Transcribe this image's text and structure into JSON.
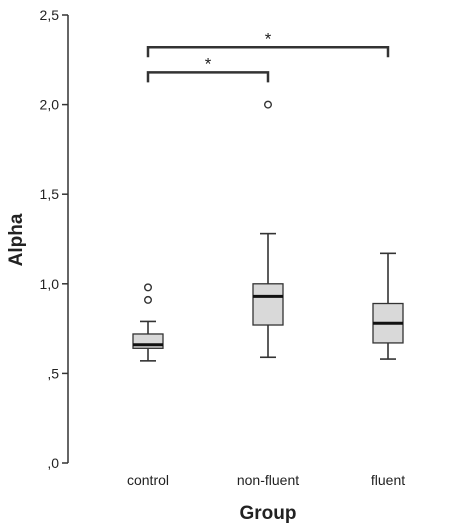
{
  "chart_data": {
    "type": "box",
    "xlabel": "Group",
    "ylabel": "Alpha",
    "ylim": [
      0,
      2.5
    ],
    "y_ticks": [
      {
        "value": 0,
        "label": ",0"
      },
      {
        "value": 0.5,
        "label": ",5"
      },
      {
        "value": 1.0,
        "label": "1,0"
      },
      {
        "value": 1.5,
        "label": "1,5"
      },
      {
        "value": 2.0,
        "label": "2,0"
      },
      {
        "value": 2.5,
        "label": "2,5"
      }
    ],
    "categories": [
      "control",
      "non-fluent",
      "fluent"
    ],
    "boxes": [
      {
        "category": "control",
        "whisker_low": 0.57,
        "q1": 0.64,
        "median": 0.66,
        "q3": 0.72,
        "whisker_high": 0.79,
        "outliers": [
          0.91,
          0.98
        ]
      },
      {
        "category": "non-fluent",
        "whisker_low": 0.59,
        "q1": 0.77,
        "median": 0.93,
        "q3": 1.0,
        "whisker_high": 1.28,
        "outliers": [
          2.0
        ]
      },
      {
        "category": "fluent",
        "whisker_low": 0.58,
        "q1": 0.67,
        "median": 0.78,
        "q3": 0.89,
        "whisker_high": 1.17,
        "outliers": []
      }
    ],
    "significance": [
      {
        "from": "control",
        "to": "fluent",
        "y": 2.32,
        "label": "*"
      },
      {
        "from": "control",
        "to": "non-fluent",
        "y": 2.18,
        "label": "*"
      }
    ],
    "box_fill": "#d9d9d9",
    "line_color": "#333333",
    "grid": false
  }
}
